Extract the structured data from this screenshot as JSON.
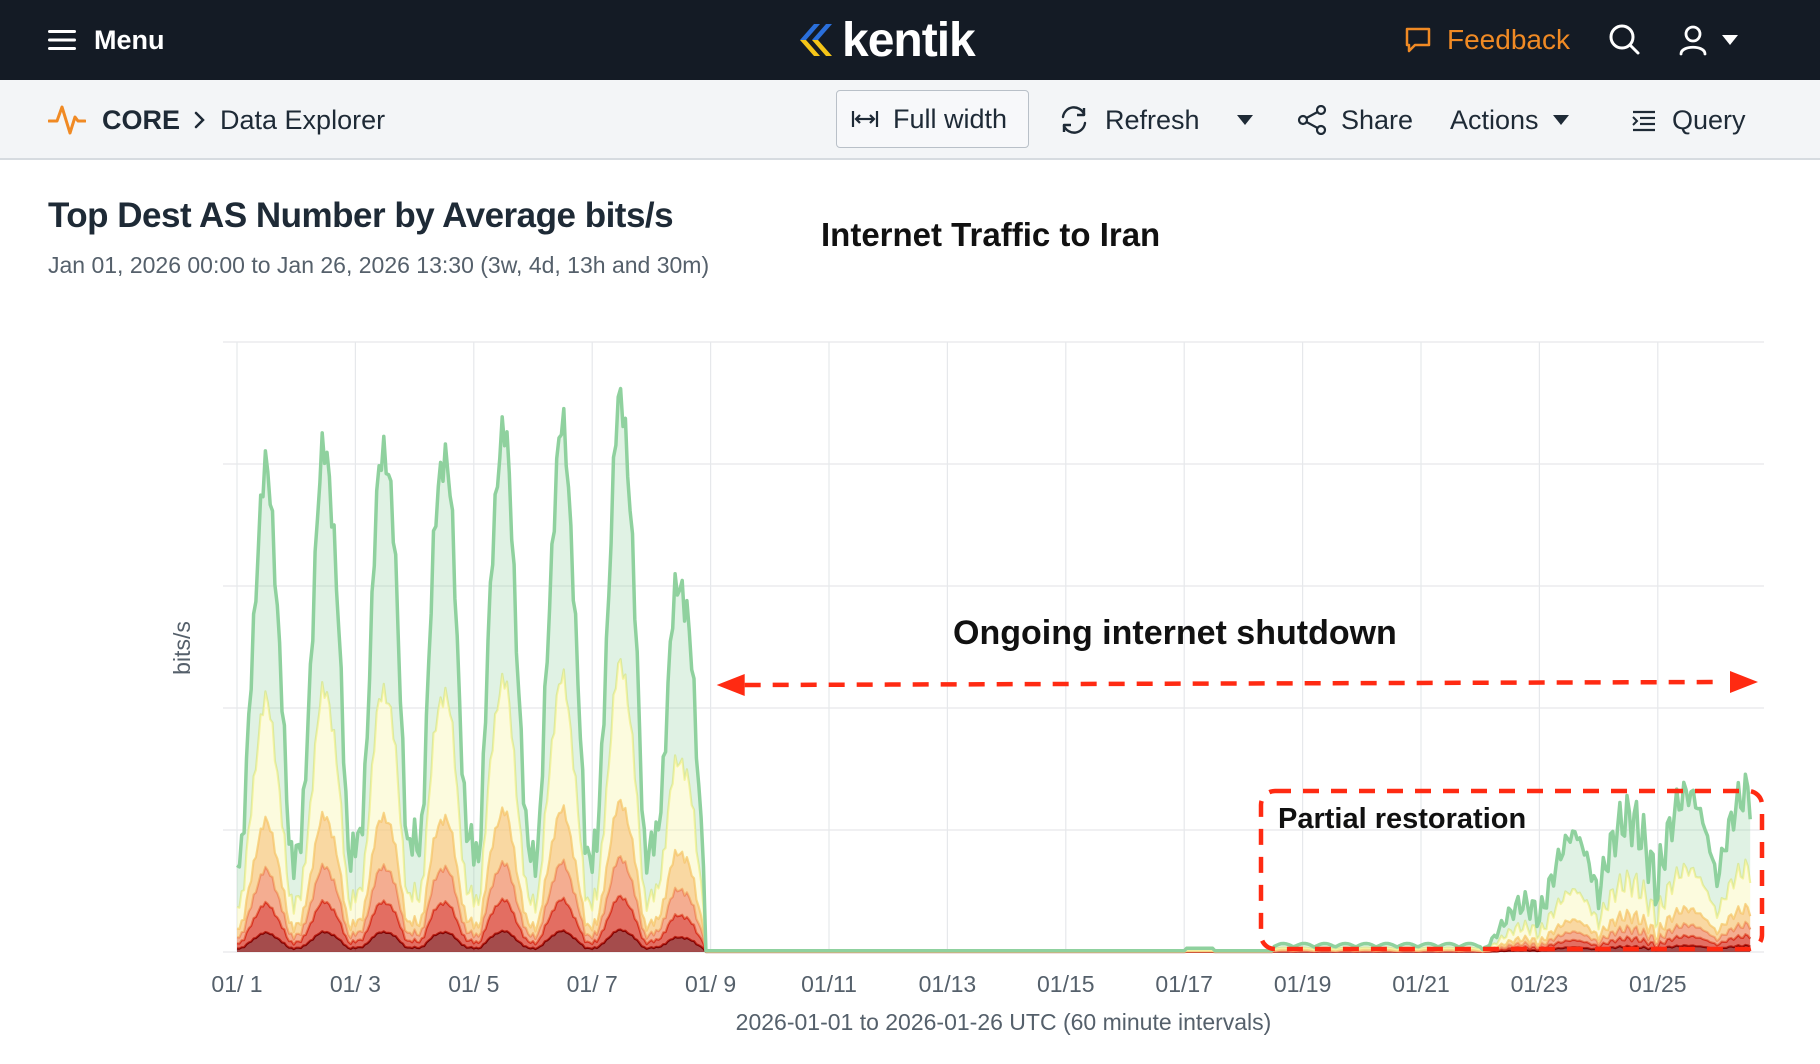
{
  "nav": {
    "menu_label": "Menu",
    "logo_text": "kentik",
    "feedback_label": "Feedback",
    "icons": [
      "hamburger-icon",
      "kentik-logo-icon",
      "feedback-icon",
      "search-icon",
      "user-icon",
      "caret-down-icon"
    ],
    "colors": {
      "bg": "#141b25",
      "feedback": "#f08a24",
      "logo_blue": "#2a6fdb",
      "logo_yellow": "#f5c518"
    }
  },
  "breadcrumb": {
    "root": "CORE",
    "page": "Data Explorer"
  },
  "toolbar": {
    "full_width_label": "Full width",
    "refresh_label": "Refresh",
    "share_label": "Share",
    "actions_label": "Actions",
    "query_label": "Query"
  },
  "header": {
    "title": "Top Dest AS Number by Average bits/s",
    "subtitle": "Jan 01, 2026 00:00 to Jan 26, 2026 13:30 (3w, 4d, 13h and 30m)"
  },
  "annotations": {
    "overlay_title": "Internet Traffic to Iran",
    "shutdown_label": "Ongoing internet shutdown",
    "restoration_label": "Partial restoration",
    "color": "#ff2a12"
  },
  "chart_data": {
    "type": "area",
    "title": "Top Dest AS Number by Average bits/s",
    "xlabel": "2026-01-01 to 2026-01-26 UTC (60 minute intervals)",
    "ylabel": "bits/s",
    "x_tick_labels": [
      "01/ 1",
      "01/ 3",
      "01/ 5",
      "01/ 7",
      "01/ 9",
      "01/11",
      "01/13",
      "01/15",
      "01/17",
      "01/19",
      "01/21",
      "01/23",
      "01/25"
    ],
    "y_tick_labels": [],
    "x_range_days": [
      1,
      26.56
    ],
    "y_range": [
      0,
      1
    ],
    "y_units_note": "y axis values are unlabeled in the original; daily peaks given as fraction of plot height",
    "grid": true,
    "stacked": true,
    "shutdown_start_day": 8.9,
    "partial_restoration_start_day": 18.5,
    "daily_peaks": {
      "days": [
        1.3,
        2.4,
        3.4,
        4.4,
        5.4,
        6.4,
        7.4,
        8.3,
        23.5,
        24.5,
        25.5,
        26.3
      ],
      "total": [
        0.78,
        0.82,
        0.83,
        0.82,
        0.85,
        0.85,
        0.9,
        0.61,
        0.2,
        0.22,
        0.26,
        0.26
      ]
    },
    "series_colors": [
      "#8fd19e",
      "#f5f3a0",
      "#f7c87a",
      "#ef8a62",
      "#d7301f",
      "#7f0000"
    ]
  }
}
